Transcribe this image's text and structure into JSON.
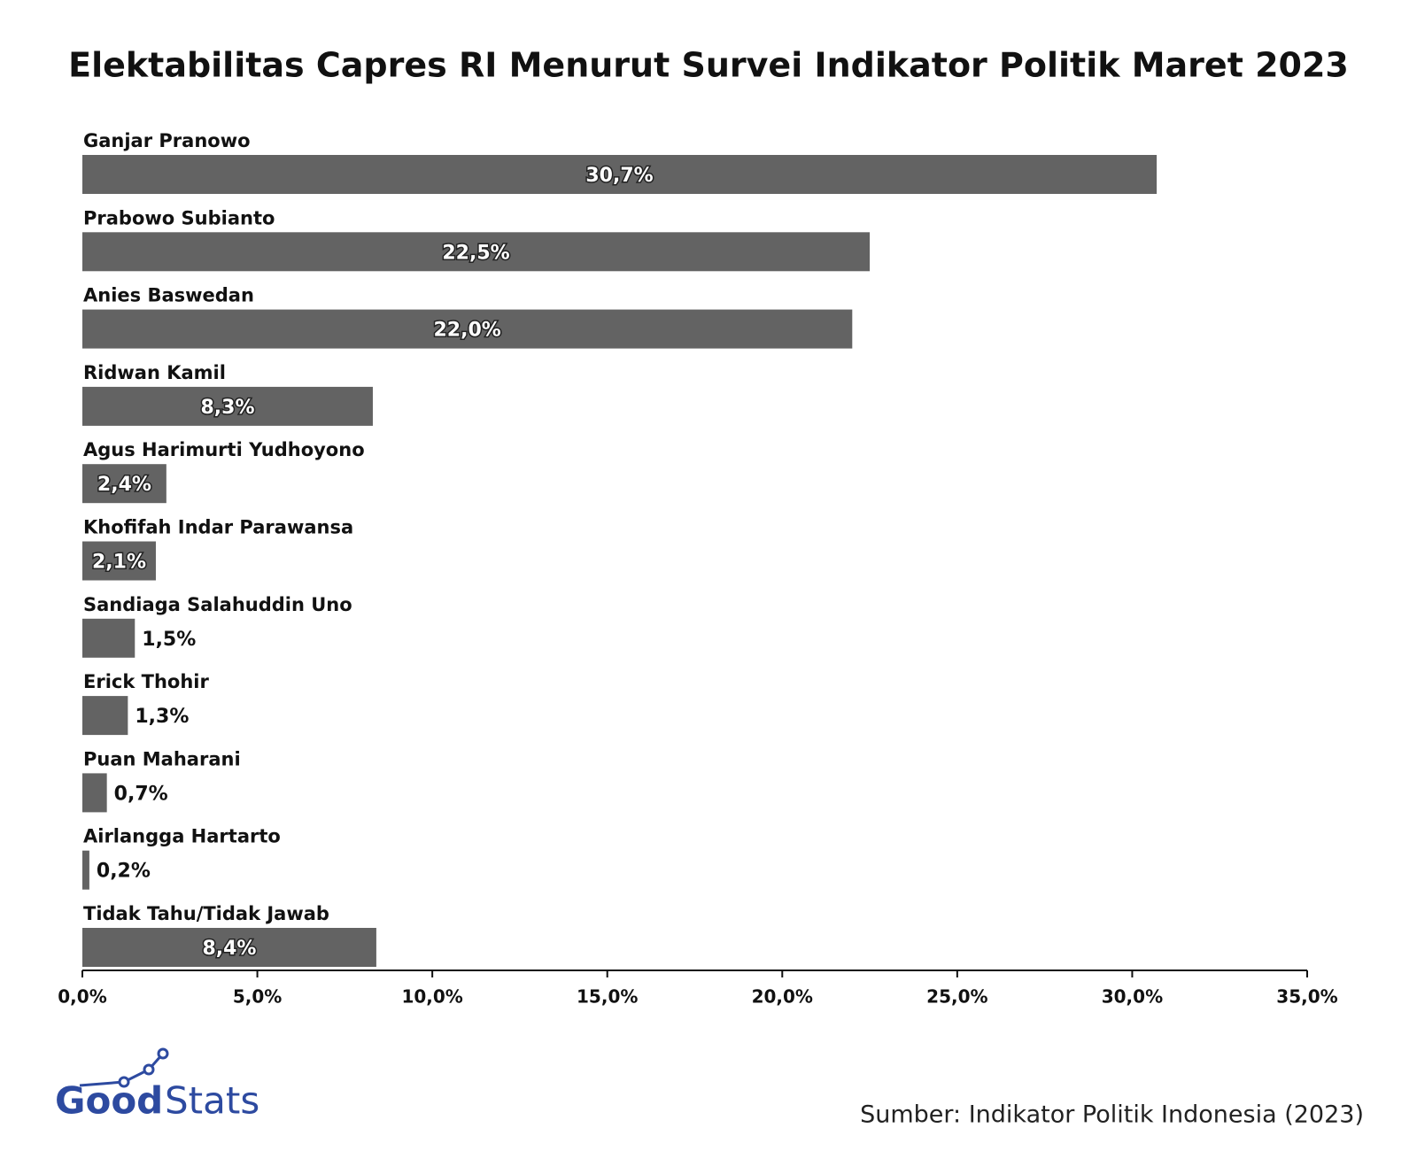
{
  "chart_data": {
    "type": "bar",
    "orientation": "horizontal",
    "title": "Elektabilitas Capres RI Menurut Survei Indikator Politik Maret 2023",
    "categories": [
      "Ganjar Pranowo",
      "Prabowo Subianto",
      "Anies Baswedan",
      "Ridwan Kamil",
      "Agus Harimurti Yudhoyono",
      "Khofifah Indar Parawansa",
      "Sandiaga Salahuddin Uno",
      "Erick Thohir",
      "Puan Maharani",
      "Airlangga Hartarto",
      "Tidak Tahu/Tidak Jawab"
    ],
    "values": [
      30.7,
      22.5,
      22.0,
      8.3,
      2.4,
      2.1,
      1.5,
      1.3,
      0.7,
      0.2,
      8.4
    ],
    "value_labels": [
      "30,7%",
      "22,5%",
      "22,0%",
      "8,3%",
      "2,4%",
      "2,1%",
      "1,5%",
      "1,3%",
      "0,7%",
      "0,2%",
      "8,4%"
    ],
    "color": "#636363",
    "xlim": [
      0,
      35
    ],
    "xticks": [
      {
        "value": 0,
        "label": "0,0%"
      },
      {
        "value": 5,
        "label": "5,0%"
      },
      {
        "value": 10,
        "label": "10,0%"
      },
      {
        "value": 15,
        "label": "15,0%"
      },
      {
        "value": 20,
        "label": "20,0%"
      },
      {
        "value": 25,
        "label": "25,0%"
      },
      {
        "value": 30,
        "label": "30,0%"
      },
      {
        "value": 35,
        "label": "35,0%"
      }
    ]
  },
  "source": "Sumber: Indikator Politik Indonesia (2023)",
  "logo": [
    "Good",
    "Stats"
  ]
}
